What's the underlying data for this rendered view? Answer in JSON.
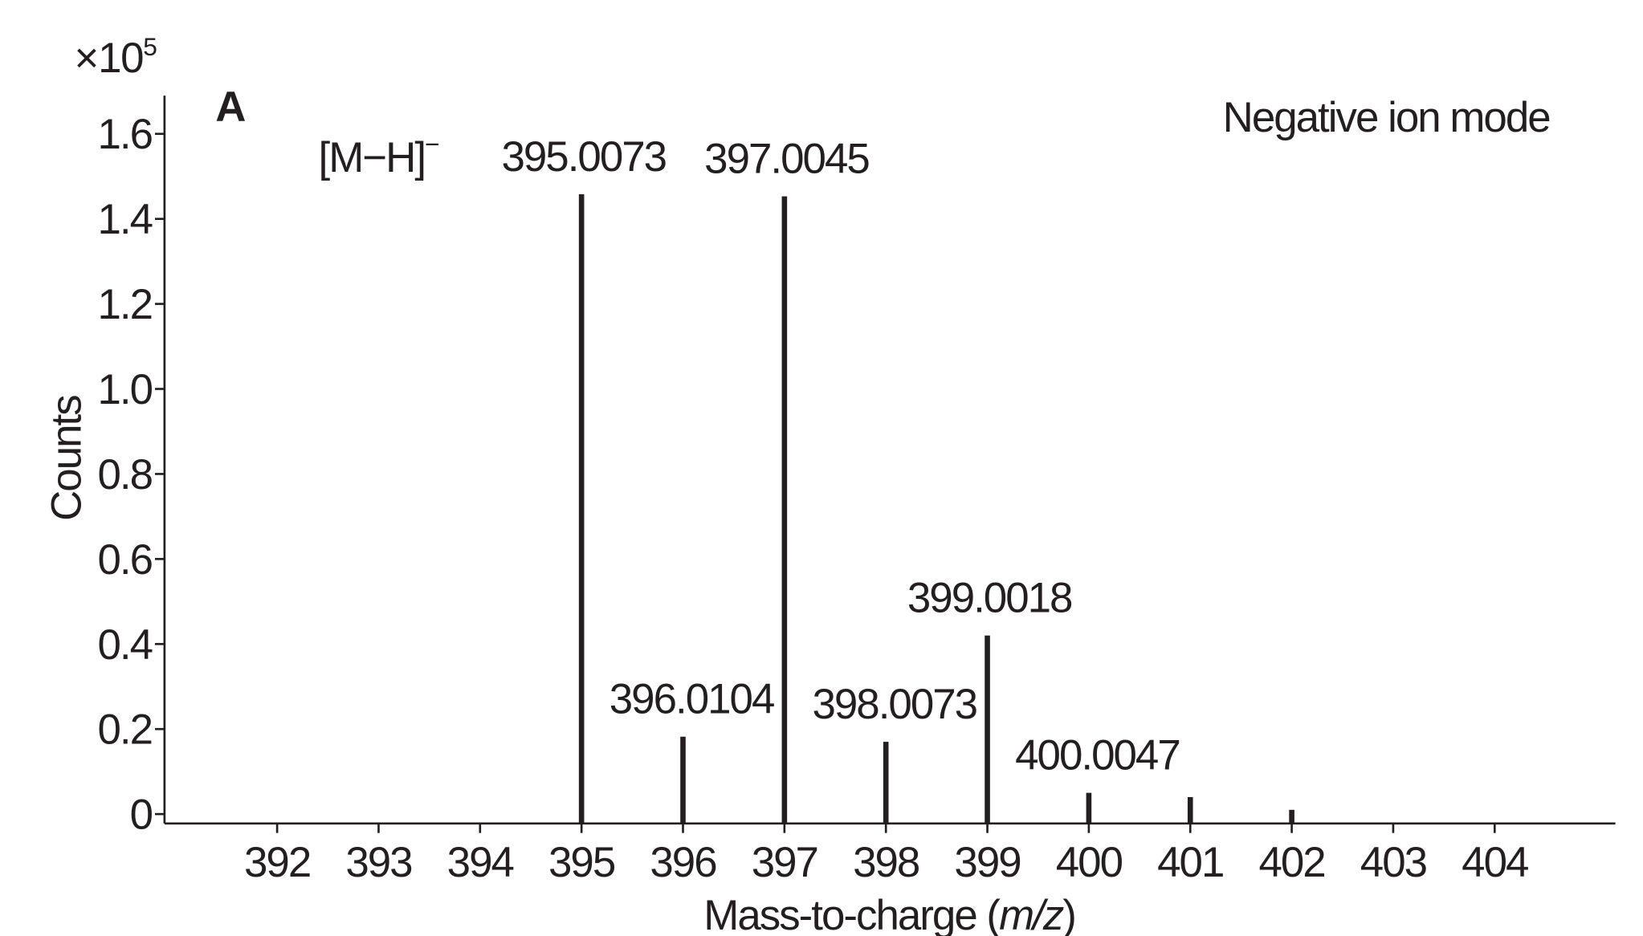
{
  "chart_data": {
    "type": "stem",
    "panel_label": "A",
    "mode_label": "Negative ion mode",
    "ion_label": {
      "text": "[M−H]",
      "sup": "−"
    },
    "y_multiplier": {
      "base": "×10",
      "exponent": "5"
    },
    "ylabel": "Counts",
    "xlabel": [
      "Mass-to-charge (",
      "m/z",
      ")"
    ],
    "x": [
      395,
      396,
      397,
      398,
      399,
      400,
      401,
      402
    ],
    "values": [
      1.458,
      0.182,
      1.453,
      0.17,
      0.42,
      0.05,
      0.04,
      0.01
    ],
    "peak_labels": [
      "395.0073",
      "396.0104",
      "397.0045",
      "398.0073",
      "399.0018",
      "400.0047",
      null,
      null
    ],
    "color": "#231f20",
    "xlim": [
      390.89,
      405.19
    ],
    "xticks": [
      392,
      393,
      394,
      395,
      396,
      397,
      398,
      399,
      400,
      401,
      402,
      403,
      404
    ],
    "ylim": [
      -0.022,
      1.69
    ],
    "yticks": [
      {
        "value": 0,
        "label": "0"
      },
      0.2,
      0.4,
      0.6,
      0.8,
      {
        "value": 1,
        "label": "1.0"
      },
      1.2,
      1.4,
      1.6
    ]
  }
}
